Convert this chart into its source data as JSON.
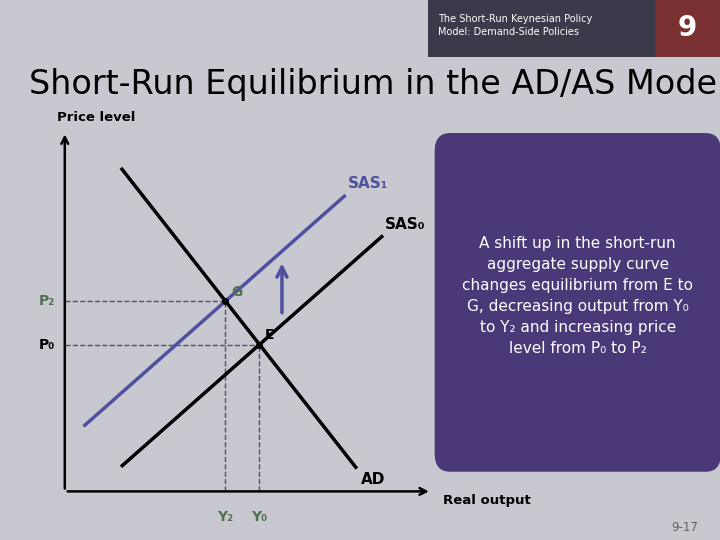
{
  "title": "Short-Run Equilibrium in the AD/AS Model",
  "title_fontsize": 24,
  "header_text": "The Short-Run Keynesian Policy\nModel: Demand-Side Policies",
  "header_number": "9",
  "ylabel": "Price level",
  "xlabel": "Real output",
  "background_color": "#c8c8d0",
  "header_bg_color": "#7a3030",
  "header_text_bg": "#3a3a4a",
  "box_bg_color": "#4a3878",
  "box_text_color": "#ffffff",
  "box_text": "A shift up in the short-run\naggregate supply curve\nchanges equilibrium from E to\nG, decreasing output from Y₀\nto Y₂ and increasing price\nlevel from P₀ to P₂",
  "SAS0_label": "SAS₀",
  "SAS1_label": "SAS₁",
  "AD_label": "AD",
  "point_E_label": "E",
  "point_G_label": "G",
  "P0_label": "P₀",
  "P2_label": "P₂",
  "Y0_label": "Y₀",
  "Y2_label": "Y₂",
  "sas0_color": "#000000",
  "sas1_color": "#5050a0",
  "ad_color": "#000000",
  "dashed_color": "#505070",
  "label_color_green": "#507050",
  "arrow_color": "#5050a0",
  "footer_text": "9-17"
}
